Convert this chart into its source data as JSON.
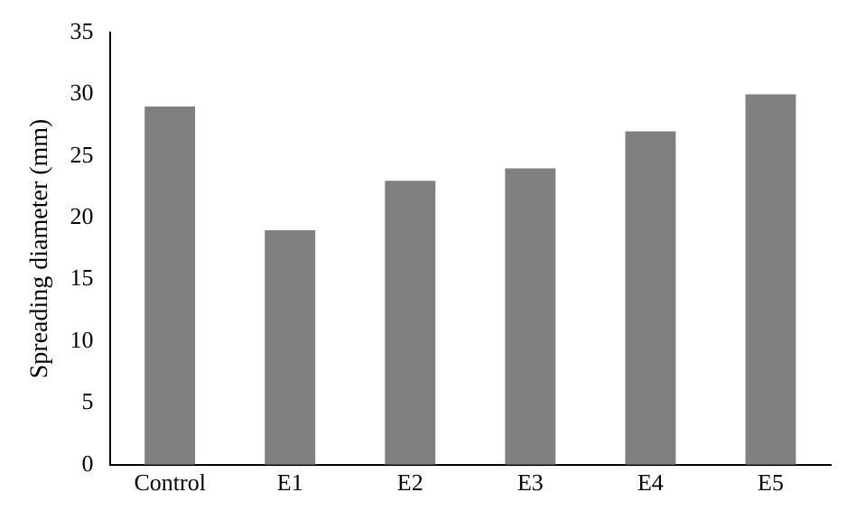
{
  "chart_data": {
    "type": "bar",
    "ylabel": "Spreading diameter (mm)",
    "categories": [
      "Control",
      "E1",
      "E2",
      "E3",
      "E4",
      "E5"
    ],
    "values": [
      29,
      19,
      23,
      24,
      27,
      30
    ],
    "color": "#808080",
    "ylim": [
      0,
      35
    ],
    "yticks": [
      0,
      5,
      10,
      15,
      20,
      25,
      30,
      35
    ],
    "grid": false,
    "legend": false
  }
}
